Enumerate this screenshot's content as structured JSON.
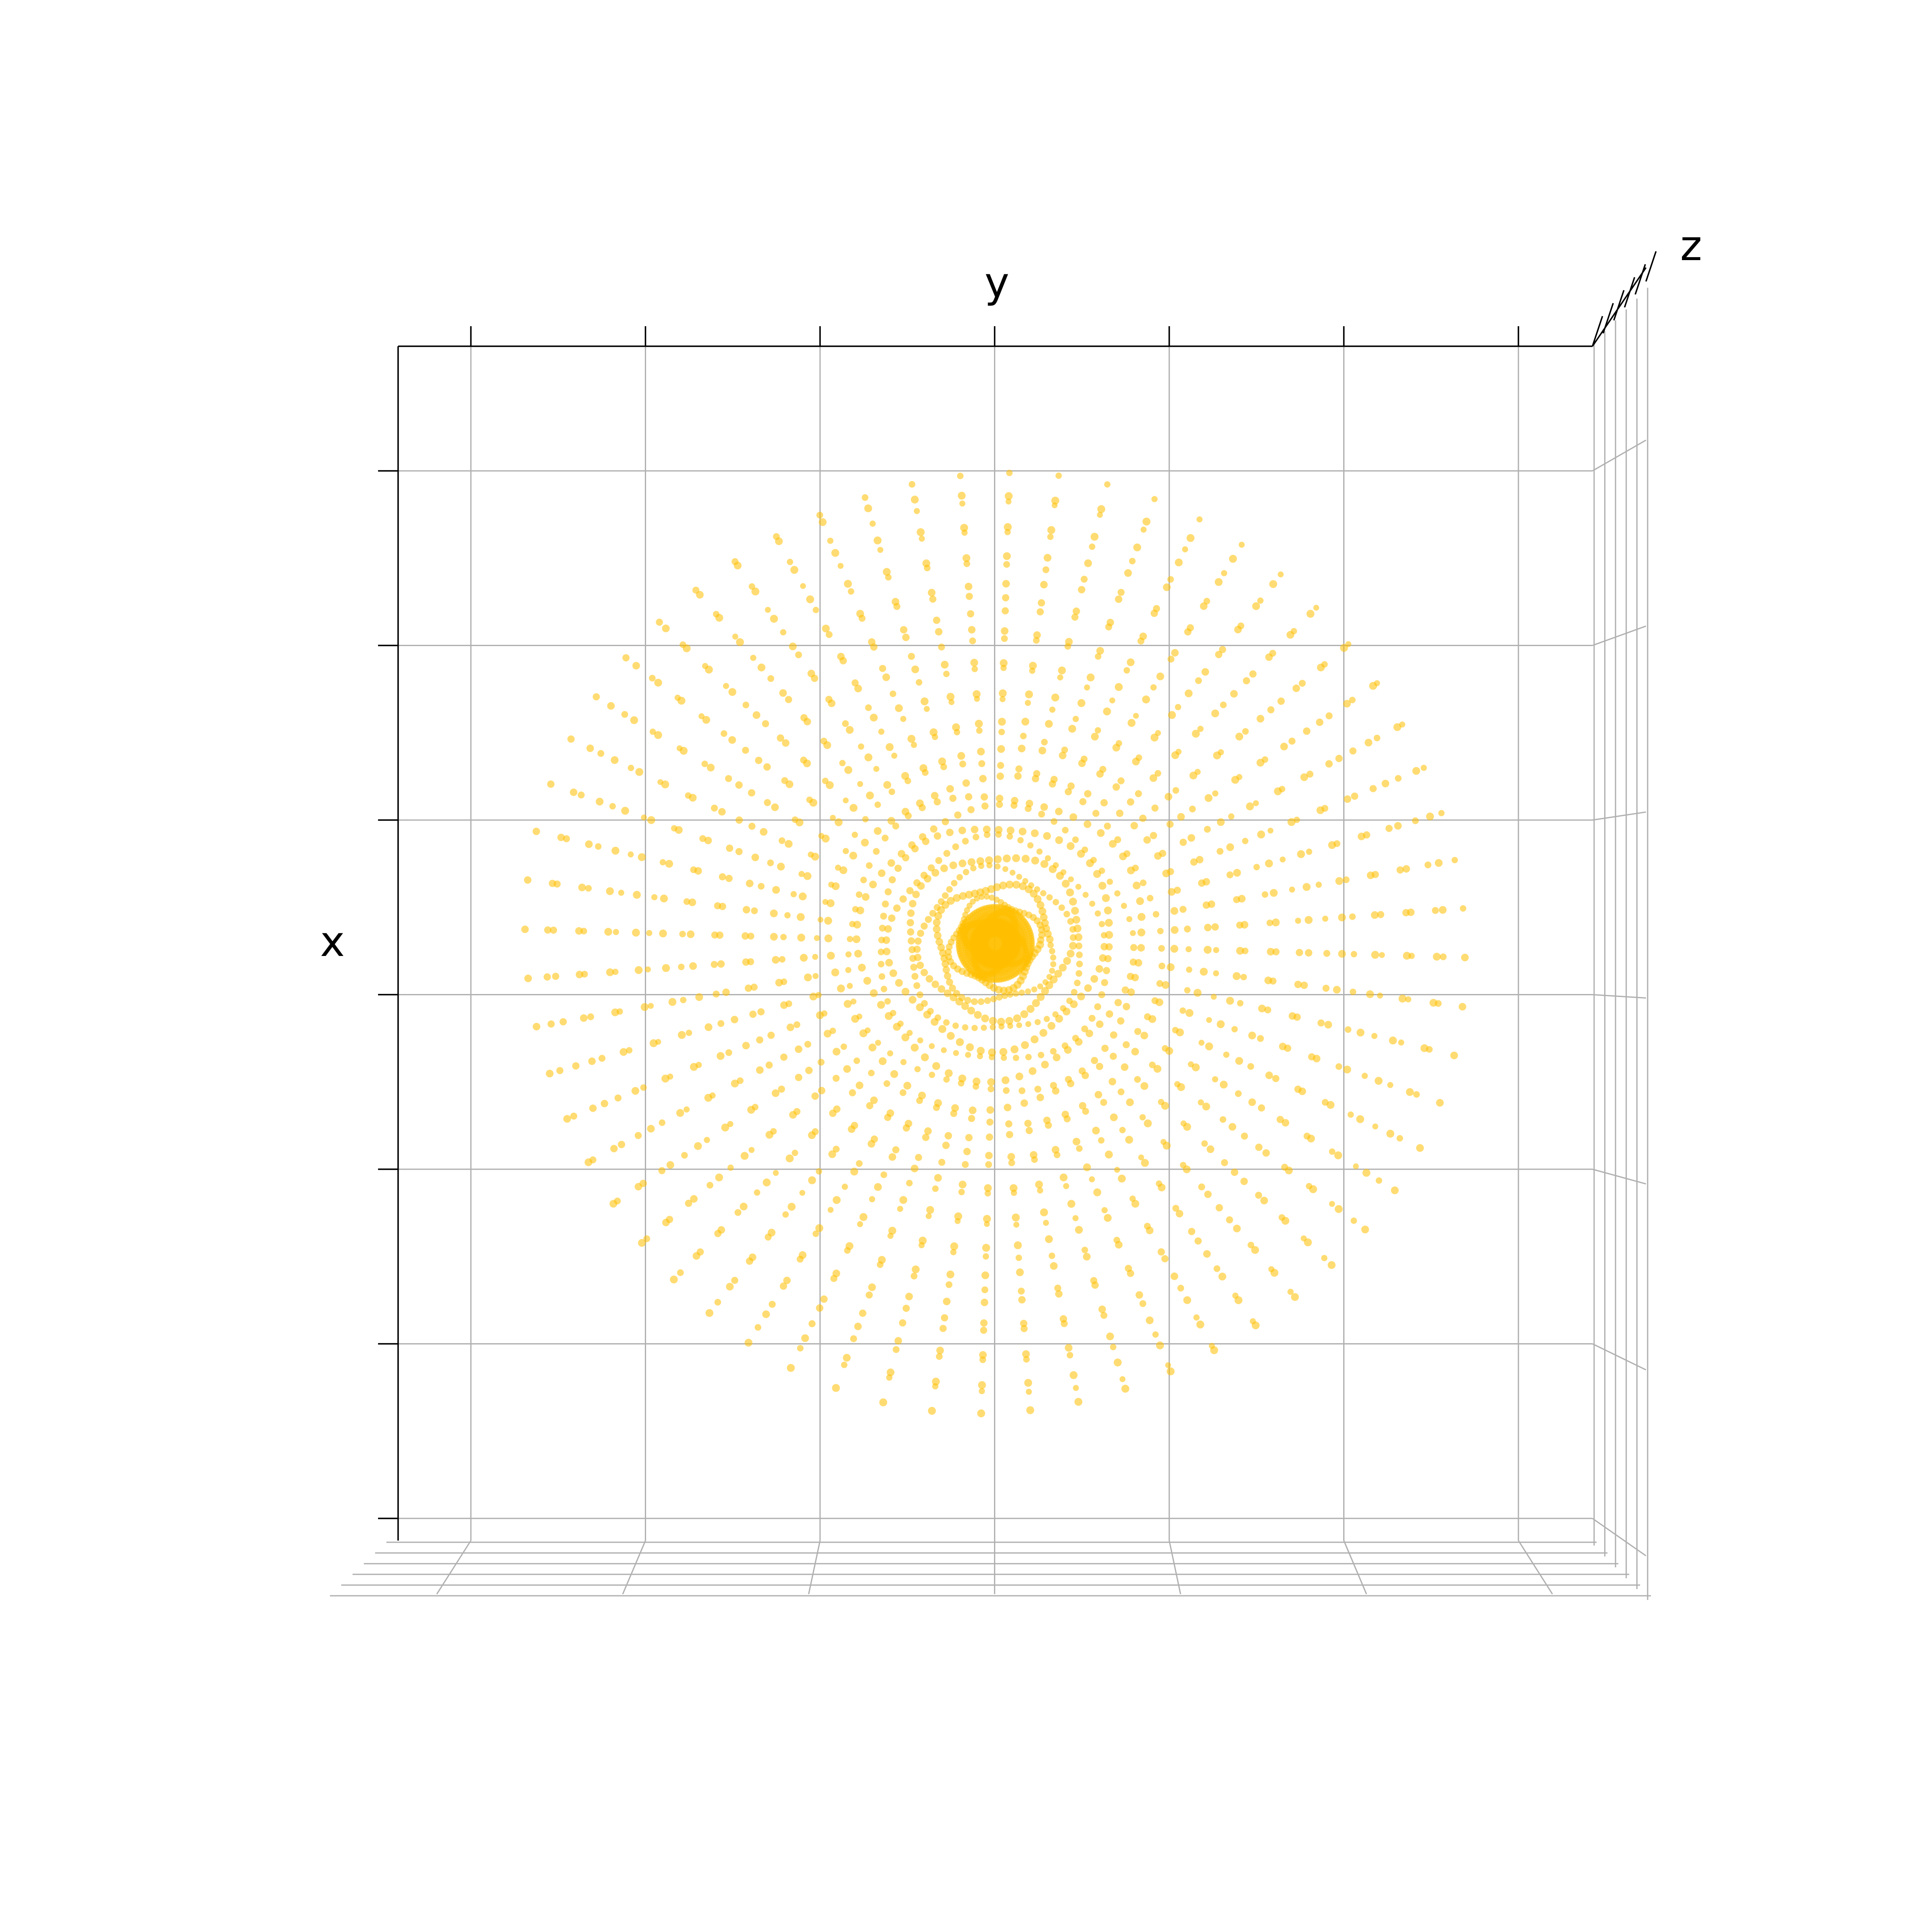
{
  "chart_data": {
    "type": "scatter",
    "projection": "3d",
    "view": "top-down",
    "title": "",
    "xlabel": "x",
    "ylabel": "y",
    "zlabel": "z",
    "tick_labels_visible": false,
    "grid": true,
    "point_color": "#FFBF00",
    "point_alpha": 0.55,
    "x_range": [
      -1.7,
      1.7
    ],
    "y_range": [
      -1.7,
      1.7
    ],
    "series": [
      {
        "shape": "radial rays",
        "rays": 60,
        "points_per_ray": 30,
        "inner_radius": 0.08,
        "outer_radius": 1.33
      }
    ]
  }
}
